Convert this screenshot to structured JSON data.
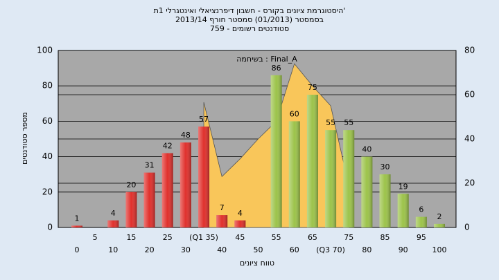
{
  "chart_data": {
    "type": "bar",
    "title": [
      "היסטוגרמת ציונים בקורס - חשבון דיפרנציאלי ואינטגרלי 1ת'",
      "בסמסטר  (01/2013)  סמסטר חורף  2013/14",
      "סטודנטים רשומים - 759"
    ],
    "legend_text": "בשיחמה : Final_A",
    "y_label": "מספר סטודנטים",
    "x_label": "טווח ציונים",
    "categories": [
      "0",
      "5",
      "10",
      "15",
      "20",
      "25",
      "30",
      "(Q1 35)",
      "40",
      "45",
      "50",
      "55",
      "60",
      "65",
      "(Q3 70)",
      "75",
      "80",
      "85",
      "90",
      "95",
      "100"
    ],
    "values": [
      1,
      null,
      4,
      20,
      31,
      42,
      48,
      57,
      7,
      4,
      null,
      86,
      60,
      75,
      55,
      55,
      40,
      30,
      19,
      6,
      2
    ],
    "colors": [
      "#e0302c",
      null,
      "#e0302c",
      "#e0302c",
      "#e0302c",
      "#e0302c",
      "#e0302c",
      "#e0302c",
      "#e0302c",
      "#e0302c",
      null,
      "#9cc34a",
      "#9cc34a",
      "#9cc34a",
      "#9cc34a",
      "#9cc34a",
      "#9cc34a",
      "#9cc34a",
      "#9cc34a",
      "#9cc34a",
      "#9cc34a"
    ],
    "area": {
      "axis": "y2",
      "color": "#f9c65a",
      "values": [
        null,
        null,
        null,
        null,
        null,
        null,
        null,
        56.6,
        23,
        31,
        40,
        48,
        74,
        64,
        55,
        19,
        null,
        null,
        null,
        null,
        null
      ]
    },
    "ylim": [
      0,
      100
    ],
    "yticks": [
      0,
      20,
      40,
      60,
      80,
      100
    ],
    "y2lim": [
      0,
      80
    ],
    "y2ticks": [
      0,
      20,
      40,
      60,
      80
    ],
    "grid": true,
    "plot_color": "#a8a8a8"
  }
}
